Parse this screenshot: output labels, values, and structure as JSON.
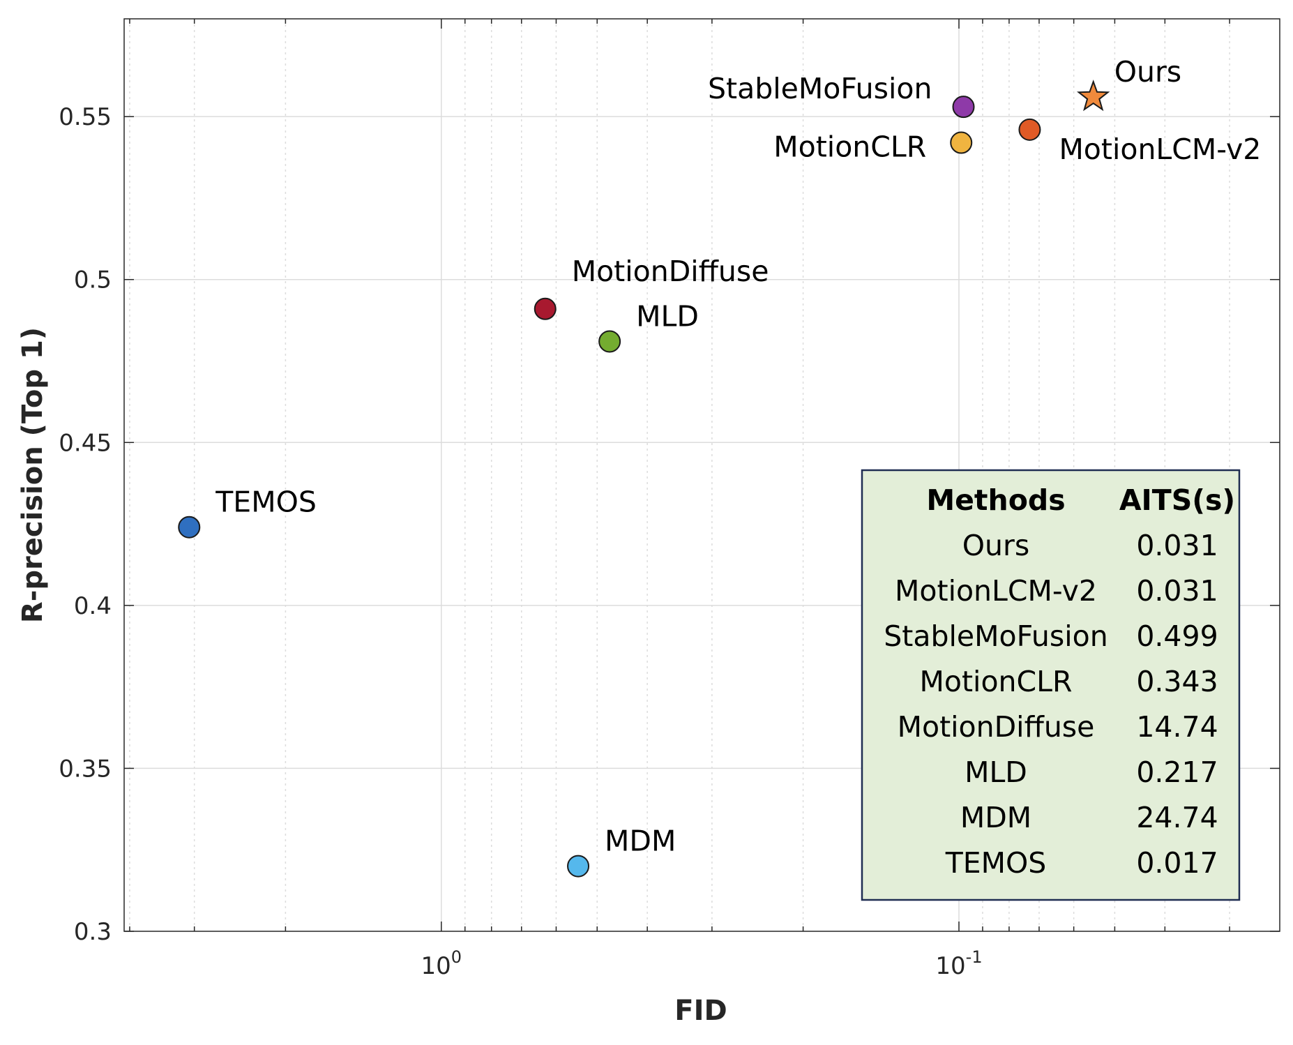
{
  "chart_data": {
    "type": "scatter",
    "xscale": "log",
    "x_reversed": true,
    "xlabel": "FID",
    "ylabel": "R-precision (Top 1)",
    "xlim": [
      4.1,
      0.024
    ],
    "ylim": [
      0.3,
      0.58
    ],
    "grid": true,
    "x_major_ticks": [
      {
        "value": 1,
        "base": "10",
        "exp": "0"
      },
      {
        "value": 0.1,
        "base": "10",
        "exp": "-1"
      }
    ],
    "y_ticks": [
      {
        "value": 0.3,
        "label": "0.3"
      },
      {
        "value": 0.35,
        "label": "0.35"
      },
      {
        "value": 0.4,
        "label": "0.4"
      },
      {
        "value": 0.45,
        "label": "0.45"
      },
      {
        "value": 0.5,
        "label": "0.5"
      },
      {
        "value": 0.55,
        "label": "0.55"
      }
    ],
    "points": [
      {
        "name": "Ours",
        "x": 0.055,
        "y": 0.556,
        "marker": "star",
        "color": "#f08a3c",
        "label_pos": "upper-right"
      },
      {
        "name": "MotionLCM-v2",
        "x": 0.073,
        "y": 0.546,
        "marker": "circle",
        "color": "#e05a26",
        "label_pos": "lower-right"
      },
      {
        "name": "StableMoFusion",
        "x": 0.098,
        "y": 0.553,
        "marker": "circle",
        "color": "#8e3aa8",
        "label_pos": "left"
      },
      {
        "name": "MotionCLR",
        "x": 0.099,
        "y": 0.542,
        "marker": "circle",
        "color": "#f0b440",
        "label_pos": "left"
      },
      {
        "name": "MotionDiffuse",
        "x": 0.63,
        "y": 0.491,
        "marker": "circle",
        "color": "#a8192f",
        "label_pos": "upper-right"
      },
      {
        "name": "MLD",
        "x": 0.473,
        "y": 0.481,
        "marker": "circle",
        "color": "#74ac30",
        "label_pos": "upper-right"
      },
      {
        "name": "TEMOS",
        "x": 3.07,
        "y": 0.424,
        "marker": "circle",
        "color": "#2f6fc0",
        "label_pos": "upper-right"
      },
      {
        "name": "MDM",
        "x": 0.544,
        "y": 0.32,
        "marker": "circle",
        "color": "#55b8ec",
        "label_pos": "upper-right"
      }
    ]
  },
  "legend_table": {
    "headers": [
      "Methods",
      "AITS(s)"
    ],
    "rows": [
      {
        "method": "Ours",
        "aits": "0.031"
      },
      {
        "method": "MotionLCM-v2",
        "aits": "0.031"
      },
      {
        "method": "StableMoFusion",
        "aits": "0.499"
      },
      {
        "method": "MotionCLR",
        "aits": "0.343"
      },
      {
        "method": "MotionDiffuse",
        "aits": "14.74"
      },
      {
        "method": "MLD",
        "aits": "0.217"
      },
      {
        "method": "MDM",
        "aits": "24.74"
      },
      {
        "method": "TEMOS",
        "aits": "0.017"
      }
    ],
    "background": "#e3eed8",
    "border": "#1f2d52"
  },
  "colors": {
    "axis": "#262626",
    "grid": "#dcdcdc",
    "marker_edge": "#1a1a1a"
  }
}
